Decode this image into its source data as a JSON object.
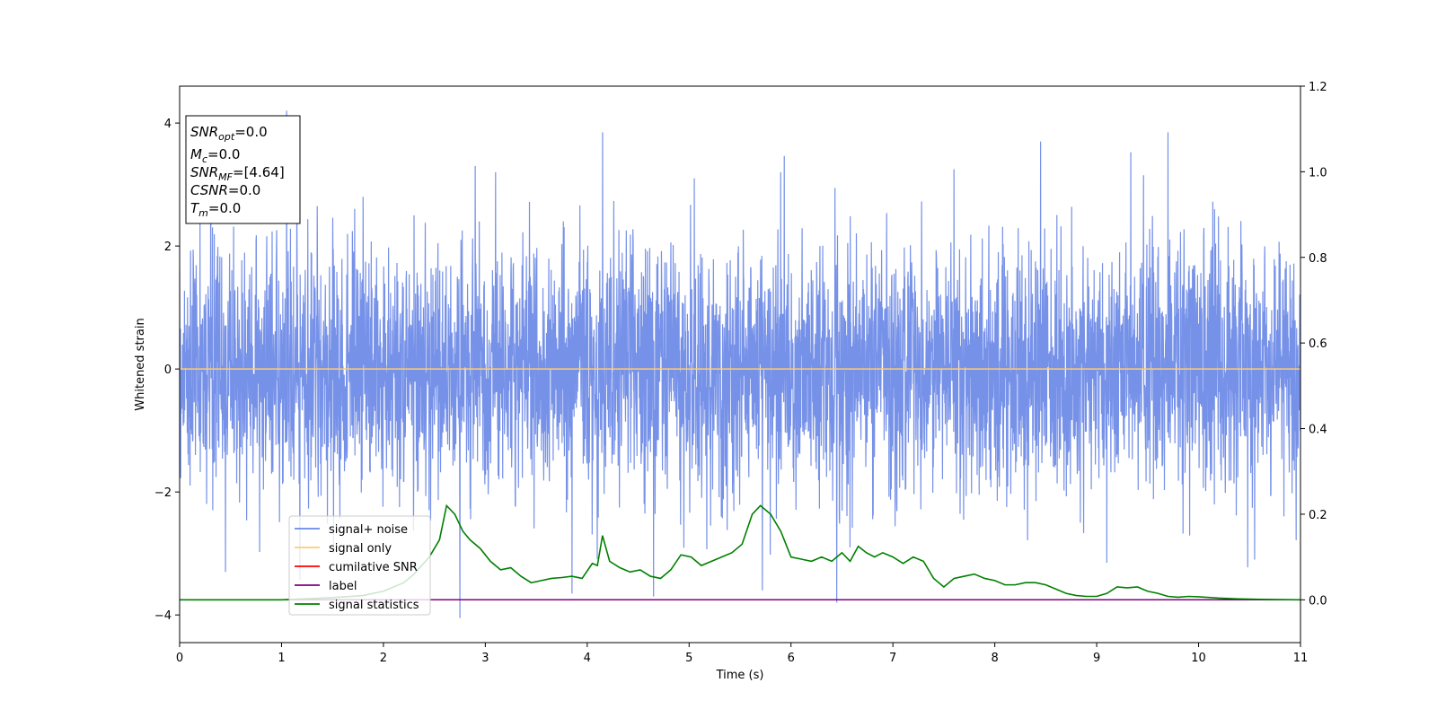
{
  "chart_data": {
    "type": "line",
    "xlabel": "Time (s)",
    "ylabel": "Whitened strain",
    "xlim": [
      0,
      11
    ],
    "ylim_left": [
      -4.45,
      4.6
    ],
    "ylim_right": [
      -0.1,
      1.2
    ],
    "x_ticks": [
      0,
      1,
      2,
      3,
      4,
      5,
      6,
      7,
      8,
      9,
      10,
      11
    ],
    "y_ticks_left": [
      -4,
      -2,
      0,
      2,
      4
    ],
    "y_ticks_right": [
      0.0,
      0.2,
      0.4,
      0.6,
      0.8,
      1.0,
      1.2
    ],
    "grid": false,
    "legend": {
      "position": "lower-left",
      "entries": [
        {
          "label": "signal+ noise",
          "color": "#6a88e6"
        },
        {
          "label": "signal only",
          "color": "#ffcc70"
        },
        {
          "label": "cumilative SNR",
          "color": "#ff0000"
        },
        {
          "label": "label",
          "color": "#800080"
        },
        {
          "label": "signal statistics",
          "color": "#008000"
        }
      ]
    },
    "info_box": [
      {
        "base": "SNR",
        "sub": "opt",
        "value": "=0.0"
      },
      {
        "base": "M",
        "sub": "c",
        "value": "=0.0"
      },
      {
        "base": "SNR",
        "sub": "MF",
        "value": "=[4.64]"
      },
      {
        "base": "CSNR",
        "sub": "",
        "value": "=0.0"
      },
      {
        "base": "T",
        "sub": "m",
        "value": "=0.0"
      }
    ],
    "series": [
      {
        "name": "signal+ noise",
        "axis": "left",
        "color": "#6a88e6",
        "note": "whitened noise, approx. unit variance, range about -4 to 4.2 over 0-11 s",
        "envelope_peaks": [
          [
            0.2,
            2.6
          ],
          [
            0.45,
            -3.3
          ],
          [
            1.05,
            4.2
          ],
          [
            1.35,
            2.65
          ],
          [
            1.8,
            2.8
          ],
          [
            2.3,
            2.5
          ],
          [
            2.75,
            -4.05
          ],
          [
            2.9,
            3.3
          ],
          [
            3.1,
            3.2
          ],
          [
            3.85,
            -3.65
          ],
          [
            4.15,
            3.85
          ],
          [
            4.65,
            -3.7
          ],
          [
            5.05,
            3.1
          ],
          [
            5.72,
            -3.6
          ],
          [
            5.9,
            3.2
          ],
          [
            6.45,
            -3.8
          ],
          [
            7.6,
            3.25
          ],
          [
            8.45,
            3.7
          ],
          [
            9.1,
            -3.15
          ],
          [
            9.7,
            3.85
          ],
          [
            10.55,
            -3.1
          ]
        ]
      },
      {
        "name": "signal only",
        "axis": "left",
        "color": "#ffcc70",
        "x": [
          0,
          11
        ],
        "y": [
          0,
          0
        ]
      },
      {
        "name": "label",
        "axis": "right",
        "color": "#800080",
        "x": [
          0,
          11
        ],
        "y": [
          0,
          0
        ]
      },
      {
        "name": "signal statistics",
        "axis": "right",
        "color": "#008000",
        "x": [
          0,
          0.5,
          1.0,
          1.5,
          1.8,
          2.0,
          2.2,
          2.3,
          2.45,
          2.55,
          2.62,
          2.7,
          2.78,
          2.85,
          2.95,
          3.05,
          3.15,
          3.25,
          3.35,
          3.45,
          3.55,
          3.65,
          3.75,
          3.85,
          3.95,
          4.05,
          4.1,
          4.15,
          4.22,
          4.32,
          4.42,
          4.52,
          4.62,
          4.72,
          4.82,
          4.92,
          5.02,
          5.12,
          5.22,
          5.32,
          5.42,
          5.52,
          5.62,
          5.7,
          5.8,
          5.9,
          6.0,
          6.1,
          6.2,
          6.3,
          6.4,
          6.5,
          6.58,
          6.66,
          6.74,
          6.82,
          6.9,
          7.0,
          7.1,
          7.2,
          7.3,
          7.4,
          7.5,
          7.6,
          7.7,
          7.8,
          7.9,
          8.0,
          8.1,
          8.2,
          8.3,
          8.4,
          8.5,
          8.6,
          8.7,
          8.8,
          8.9,
          9.0,
          9.1,
          9.2,
          9.3,
          9.4,
          9.5,
          9.6,
          9.7,
          9.8,
          9.9,
          10.0,
          10.2,
          10.4,
          10.6,
          11.0
        ],
        "y": [
          0,
          0,
          0,
          0.005,
          0.01,
          0.02,
          0.04,
          0.06,
          0.1,
          0.14,
          0.22,
          0.2,
          0.16,
          0.14,
          0.12,
          0.09,
          0.07,
          0.075,
          0.055,
          0.04,
          0.045,
          0.05,
          0.052,
          0.055,
          0.05,
          0.085,
          0.08,
          0.15,
          0.09,
          0.075,
          0.065,
          0.07,
          0.055,
          0.05,
          0.07,
          0.105,
          0.1,
          0.08,
          0.09,
          0.1,
          0.11,
          0.13,
          0.2,
          0.22,
          0.2,
          0.16,
          0.1,
          0.095,
          0.09,
          0.1,
          0.09,
          0.11,
          0.09,
          0.125,
          0.11,
          0.1,
          0.11,
          0.1,
          0.085,
          0.1,
          0.09,
          0.05,
          0.03,
          0.05,
          0.055,
          0.06,
          0.05,
          0.045,
          0.035,
          0.035,
          0.04,
          0.04,
          0.035,
          0.025,
          0.015,
          0.01,
          0.008,
          0.008,
          0.015,
          0.03,
          0.028,
          0.03,
          0.02,
          0.015,
          0.008,
          0.006,
          0.008,
          0.007,
          0.004,
          0.002,
          0.001,
          0
        ]
      }
    ]
  }
}
